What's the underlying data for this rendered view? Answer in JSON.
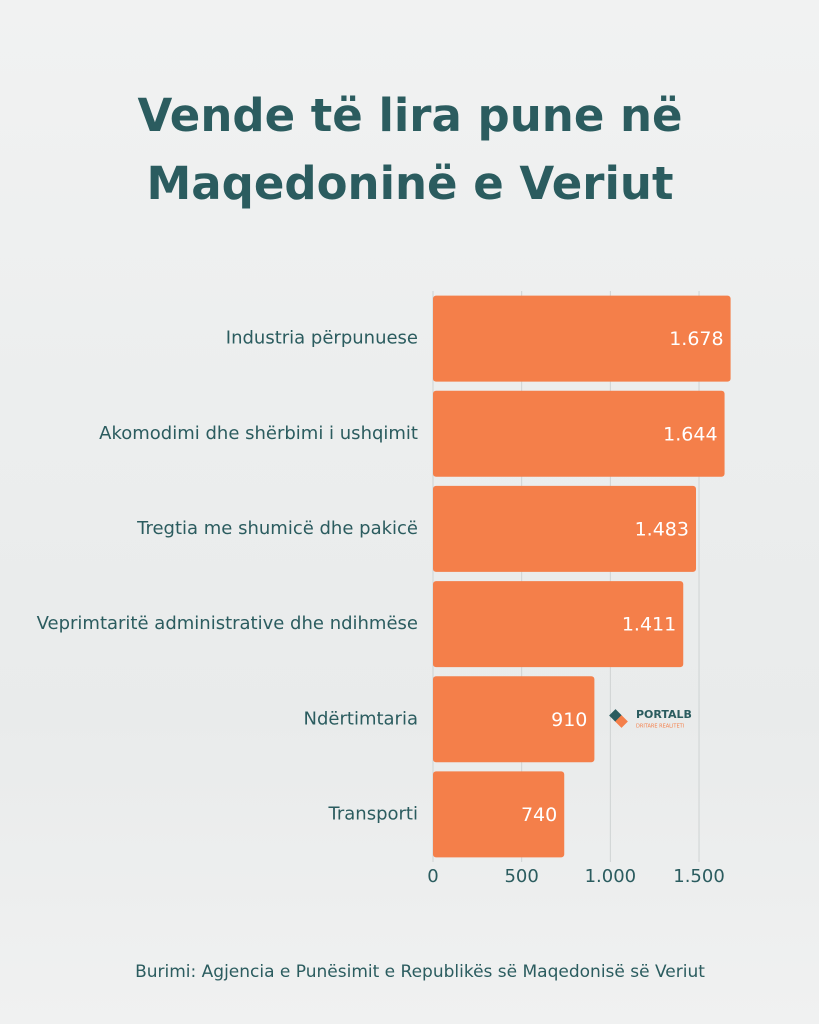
{
  "chart_data": {
    "type": "barh",
    "title": "Vende të lira pune në Maqedoninë e Veriut",
    "categories": [
      "Industria përpunuese",
      "Akomodimi dhe shërbimi i ushqimit",
      "Tregtia me shumicë dhe pakicë",
      "Veprimtaritë administrative dhe ndihmëse",
      "Ndërtimtaria",
      "Transporti"
    ],
    "values": [
      1678,
      1644,
      1483,
      1411,
      910,
      740
    ],
    "value_labels": [
      "1.678",
      "1.644",
      "1.483",
      "1.411",
      "910",
      "740"
    ],
    "color": "#f47f4a",
    "xlim": [
      0,
      1700
    ],
    "xticks": [
      0,
      500,
      {
        "value": 1000,
        "label": "1.000"
      },
      {
        "value": 1500,
        "label": "1.500"
      }
    ],
    "grid": true,
    "source": "Burimi: Agjencia e Punësimit e Republikës së Maqedonisë së Veriut",
    "logo": "PORTALB",
    "logo_tagline": "DRITARE REALITETI"
  }
}
